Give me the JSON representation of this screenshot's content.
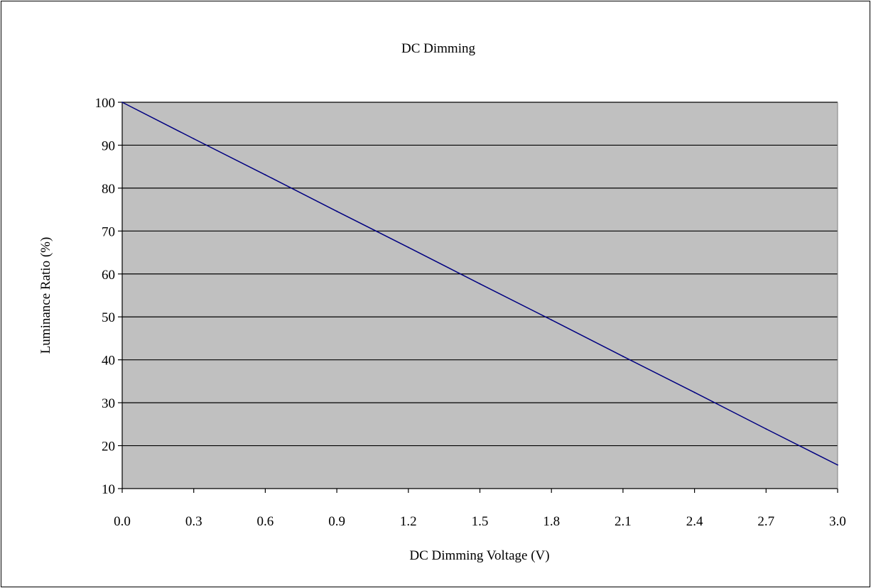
{
  "chart_data": {
    "type": "line",
    "title": "DC Dimming",
    "xlabel": "DC Dimming Voltage (V)",
    "ylabel": "Luminance Ratio (%)",
    "xlim": [
      0.0,
      3.0
    ],
    "ylim": [
      10,
      100
    ],
    "x_ticks": [
      "0.0",
      "0.3",
      "0.6",
      "0.9",
      "1.2",
      "1.5",
      "1.8",
      "2.1",
      "2.4",
      "2.7",
      "3.0"
    ],
    "y_ticks": [
      "100",
      "90",
      "80",
      "70",
      "60",
      "50",
      "40",
      "30",
      "20",
      "10"
    ],
    "grid": "horizontal",
    "legend": "none",
    "colors": {
      "plot_background": "#c0c0c0",
      "line": "#000080",
      "gridline": "#000000"
    },
    "series": [
      {
        "x": [
          0.0,
          0.3,
          0.6,
          0.9,
          1.2,
          1.5,
          1.8,
          2.1,
          2.4,
          2.7,
          3.0
        ],
        "values": [
          100,
          91.5,
          83.1,
          74.6,
          66.2,
          57.7,
          49.3,
          40.8,
          32.4,
          23.9,
          15.5
        ]
      }
    ]
  }
}
